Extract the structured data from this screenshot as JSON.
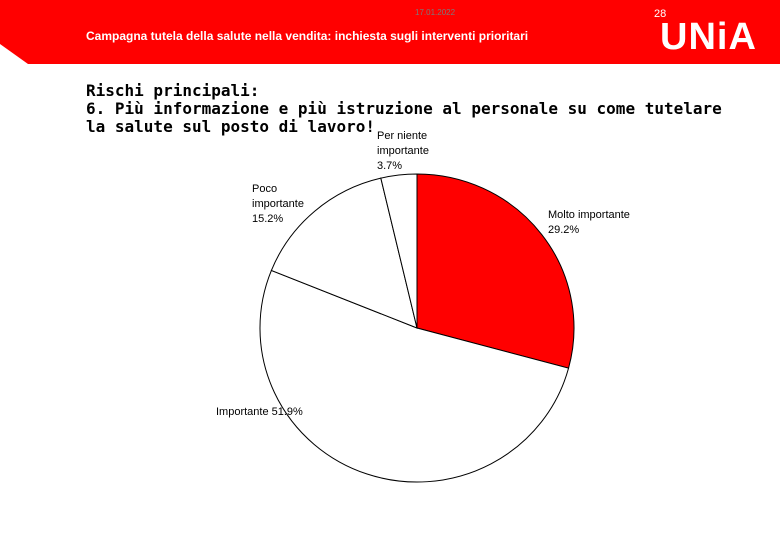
{
  "header": {
    "date": "17.01.2022",
    "page_number": "28",
    "subtitle": "Campagna tutela della salute nella vendita: inchiesta sugli interventi prioritari",
    "logo_text": "UNiA",
    "banner_color": "#ff0000"
  },
  "heading": {
    "line1": "Rischi principali:",
    "line2": "6. Più informazione e più istruzione al personale su come tutelare",
    "line3": "la salute sul posto di lavoro!"
  },
  "chart_data": {
    "type": "pie",
    "title": "",
    "slices": [
      {
        "label_lines": [
          "Molto importante",
          "29.2%"
        ],
        "value": 29.2,
        "color": "#ff0000"
      },
      {
        "label_lines": [
          "Importante 51.9%"
        ],
        "value": 51.9,
        "color": "#ffffff"
      },
      {
        "label_lines": [
          "Poco",
          "importante",
          "15.2%"
        ],
        "value": 15.2,
        "color": "#ffffff"
      },
      {
        "label_lines": [
          "Per niente",
          "importante",
          "3.7%"
        ],
        "value": 3.7,
        "color": "#ffffff"
      }
    ],
    "start": "12 o'clock",
    "direction": "clockwise",
    "legend": "none (labels next to slices)"
  }
}
